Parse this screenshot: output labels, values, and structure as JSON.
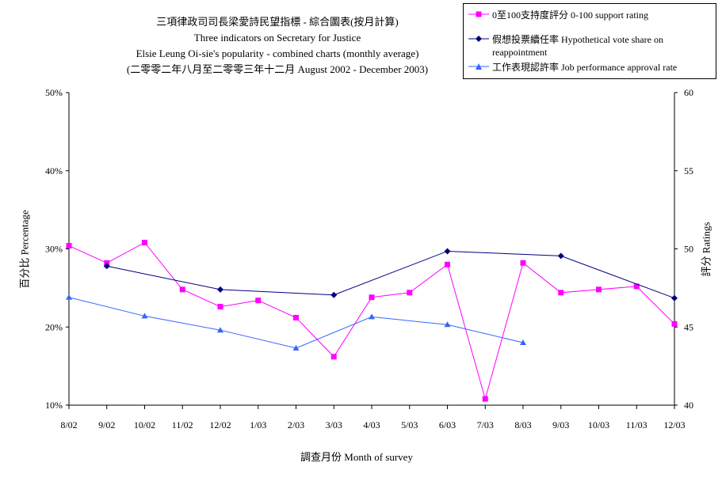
{
  "chart_data": {
    "type": "line",
    "title": "三項律政司司長梁愛詩民望指標 - 綜合圖表(按月計算)",
    "subtitle_lines": [
      "Three indicators on Secretary for Justice",
      "Elsie Leung Oi-sie's popularity - combined charts (monthly average)",
      "(二零零二年八月至二零零三年十二月 August 2002 - December 2003)"
    ],
    "xlabel": "調查月份  Month of survey",
    "ylabel": "百分比  Percentage",
    "ylabel_right": "評分  Ratings",
    "categories": [
      "8/02",
      "9/02",
      "10/02",
      "11/02",
      "12/02",
      "1/03",
      "2/03",
      "3/03",
      "4/03",
      "5/03",
      "6/03",
      "7/03",
      "8/03",
      "9/03",
      "10/03",
      "11/03",
      "12/03"
    ],
    "ylim": [
      0.1,
      0.5
    ],
    "ylim_right": [
      40,
      60
    ],
    "yticks": [
      "10%",
      "20%",
      "30%",
      "40%",
      "50%"
    ],
    "yticks_right": [
      "40",
      "45",
      "50",
      "55",
      "60"
    ],
    "legend_position": "top-right",
    "series": [
      {
        "name": "0至100支持度評分 0-100 support rating",
        "axis": "right",
        "color": "#ff00ff",
        "marker": "square",
        "values": [
          50.2,
          49.1,
          50.4,
          47.4,
          46.3,
          46.7,
          45.6,
          43.1,
          46.9,
          47.2,
          49.0,
          40.4,
          49.1,
          47.2,
          47.4,
          47.6,
          45.2
        ]
      },
      {
        "name": "假想投票續任率 Hypothetical vote share on reappointment",
        "axis": "left",
        "color": "#000080",
        "marker": "diamond",
        "values": [
          null,
          0.278,
          null,
          null,
          0.248,
          null,
          null,
          0.241,
          null,
          null,
          0.297,
          null,
          null,
          0.291,
          null,
          null,
          0.237
        ]
      },
      {
        "name": "工作表現認許率 Job performance approval rate",
        "axis": "left",
        "color": "#3366ff",
        "marker": "triangle",
        "values": [
          0.238,
          null,
          0.214,
          null,
          0.196,
          null,
          0.173,
          null,
          0.213,
          null,
          0.203,
          null,
          0.18,
          null,
          null,
          null,
          null
        ]
      }
    ]
  }
}
